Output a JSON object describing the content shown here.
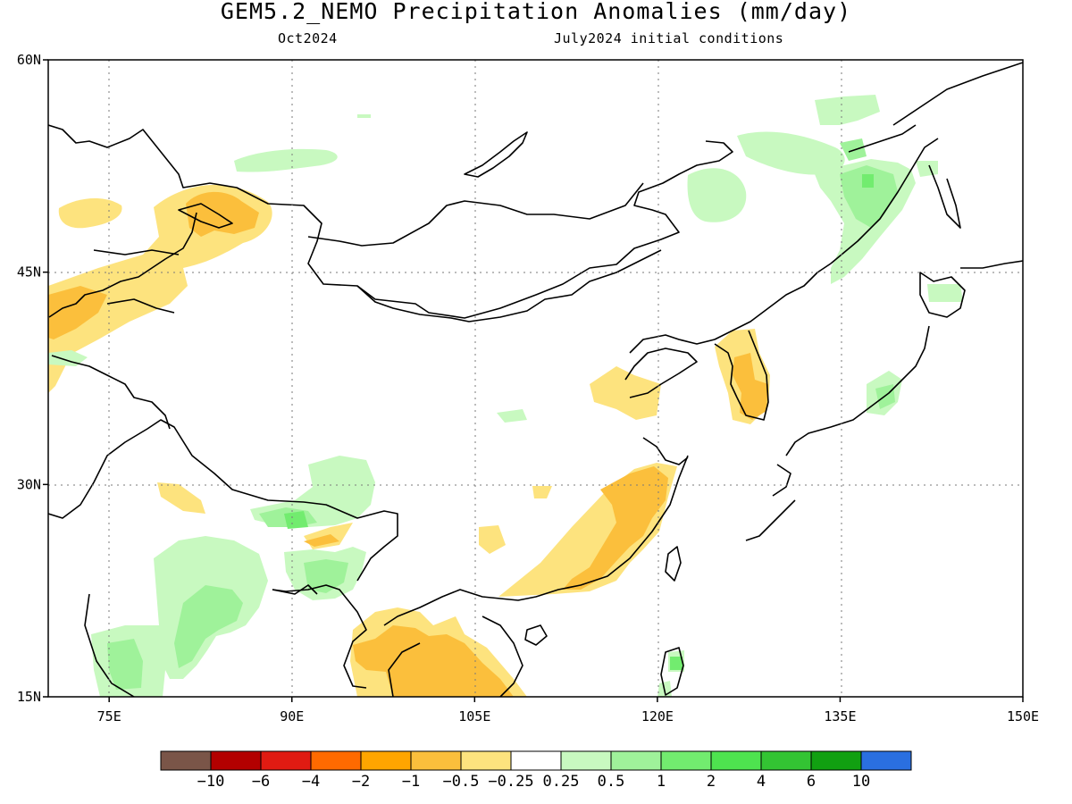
{
  "title": "GEM5.2_NEMO Precipitation Anomalies (mm/day)",
  "subtitle_left": "Oct2024",
  "subtitle_right": "July2024 initial conditions",
  "map": {
    "lon_range": [
      70,
      150
    ],
    "lat_range": [
      15,
      60
    ],
    "lon_ticks": [
      {
        "value": 75,
        "label": "75E"
      },
      {
        "value": 90,
        "label": "90E"
      },
      {
        "value": 105,
        "label": "105E"
      },
      {
        "value": 120,
        "label": "120E"
      },
      {
        "value": 135,
        "label": "135E"
      },
      {
        "value": 150,
        "label": "150E"
      }
    ],
    "lat_ticks": [
      {
        "value": 60,
        "label": "60N"
      },
      {
        "value": 45,
        "label": "45N"
      },
      {
        "value": 30,
        "label": "30N"
      },
      {
        "value": 15,
        "label": "15N"
      }
    ],
    "grid": "dotted"
  },
  "colorbar": {
    "colors": [
      "#7a5548",
      "#b30000",
      "#e01b12",
      "#ff6a00",
      "#ffa500",
      "#fbbf3c",
      "#fde37e",
      "#ffffff",
      "#c8f9c0",
      "#9ff29a",
      "#72ec6f",
      "#4ee34f",
      "#33c433",
      "#11a011",
      "#2a6fe0"
    ],
    "labels": [
      "−10",
      "−6",
      "−4",
      "−2",
      "−1",
      "−0.5",
      "−0.25",
      "0.25",
      "0.5",
      "1",
      "2",
      "4",
      "6",
      "10"
    ]
  }
}
